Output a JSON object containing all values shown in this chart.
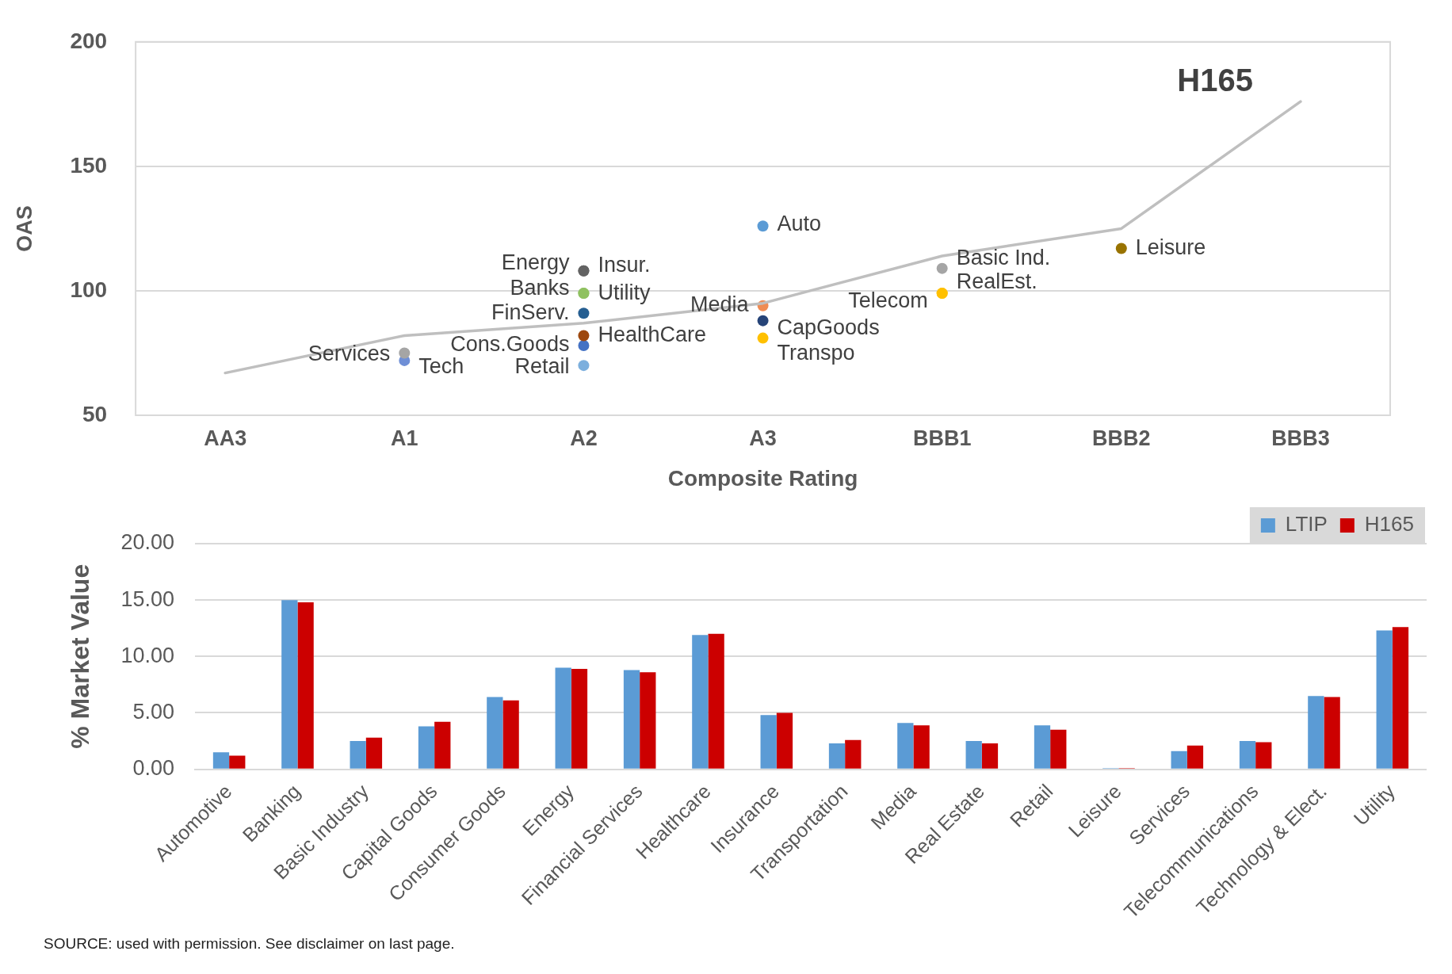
{
  "chart_data": [
    {
      "type": "line",
      "xlabel": "Composite Rating",
      "ylabel": "OAS",
      "categories": [
        "AA3",
        "A1",
        "A2",
        "A3",
        "BBB1",
        "BBB2",
        "BBB3"
      ],
      "ylim": [
        50,
        200
      ],
      "yticks": [
        50,
        100,
        150,
        200
      ],
      "grid": "y",
      "series": [
        {
          "name": "H165",
          "type": "line",
          "marker": "none",
          "color": "#bfbfbf",
          "values": [
            67,
            82,
            87,
            95,
            114,
            125,
            176
          ]
        },
        {
          "name": "Services",
          "type": "scatter",
          "color": "#a5a5a5",
          "x": [
            "A1"
          ],
          "values": [
            75
          ]
        },
        {
          "name": "Tech",
          "type": "scatter",
          "color": "#6f8fd6",
          "x": [
            "A1"
          ],
          "values": [
            72
          ]
        },
        {
          "name": "Energy",
          "type": "scatter",
          "color": "#636363",
          "x": [
            "A2"
          ],
          "values": [
            108
          ]
        },
        {
          "name": "Insur.",
          "type": "scatter",
          "color": "#636363",
          "x": [
            "A2"
          ],
          "values": [
            108
          ]
        },
        {
          "name": "Banks",
          "type": "scatter",
          "color": "#8fc160",
          "x": [
            "A2"
          ],
          "values": [
            99
          ]
        },
        {
          "name": "Utility",
          "type": "scatter",
          "color": "#8fc160",
          "x": [
            "A2"
          ],
          "values": [
            99
          ]
        },
        {
          "name": "FinServ.",
          "type": "scatter",
          "color": "#255e91",
          "x": [
            "A2"
          ],
          "values": [
            91
          ]
        },
        {
          "name": "HealthCare",
          "type": "scatter",
          "color": "#9e480e",
          "x": [
            "A2"
          ],
          "values": [
            82
          ]
        },
        {
          "name": "Cons.Goods",
          "type": "scatter",
          "color": "#4472c4",
          "x": [
            "A2"
          ],
          "values": [
            78
          ]
        },
        {
          "name": "Retail",
          "type": "scatter",
          "color": "#7cafdd",
          "x": [
            "A2"
          ],
          "values": [
            70
          ]
        },
        {
          "name": "Auto",
          "type": "scatter",
          "color": "#5b9bd5",
          "x": [
            "A3"
          ],
          "values": [
            126
          ]
        },
        {
          "name": "Media",
          "type": "scatter",
          "color": "#f08c53",
          "x": [
            "A3"
          ],
          "values": [
            94
          ]
        },
        {
          "name": "CapGoods",
          "type": "scatter",
          "color": "#264478",
          "x": [
            "A3"
          ],
          "values": [
            88
          ]
        },
        {
          "name": "Transpo",
          "type": "scatter",
          "color": "#ffc000",
          "x": [
            "A3"
          ],
          "values": [
            81
          ]
        },
        {
          "name": "Basic Ind.",
          "type": "scatter",
          "color": "#a5a5a5",
          "x": [
            "BBB1"
          ],
          "values": [
            109
          ]
        },
        {
          "name": "Telecom",
          "type": "scatter",
          "color": "#ffc000",
          "x": [
            "BBB1"
          ],
          "values": [
            99
          ]
        },
        {
          "name": "RealEst.",
          "type": "scatter",
          "color": "#ffc000",
          "x": [
            "BBB1"
          ],
          "values": [
            99
          ]
        },
        {
          "name": "Leisure",
          "type": "scatter",
          "color": "#997300",
          "x": [
            "BBB2"
          ],
          "values": [
            117
          ]
        }
      ]
    },
    {
      "type": "bar",
      "ylabel": "% Market Value",
      "categories": [
        "Automotive",
        "Banking",
        "Basic Industry",
        "Capital Goods",
        "Consumer Goods",
        "Energy",
        "Financial Services",
        "Healthcare",
        "Insurance",
        "Transportation",
        "Media",
        "Real Estate",
        "Retail",
        "Leisure",
        "Services",
        "Telecommunications",
        "Technology & Elect.",
        "Utility"
      ],
      "ylim": [
        0,
        20
      ],
      "yticks": [
        {
          "value": 0,
          "label": "0.00"
        },
        {
          "value": 5,
          "label": "5.00"
        },
        {
          "value": 10,
          "label": "10.00"
        },
        {
          "value": 15,
          "label": "15.00"
        },
        {
          "value": 20,
          "label": "20.00"
        }
      ],
      "grid": "y",
      "legend": "top right",
      "annotations": [
        "SOURCE: used with permission.  See disclaimer on last page."
      ],
      "series": [
        {
          "name": "LTIP",
          "color": "#5b9bd5",
          "values": [
            1.5,
            15.0,
            2.5,
            3.8,
            6.4,
            9.0,
            8.8,
            11.9,
            4.8,
            2.3,
            4.1,
            2.5,
            3.9,
            0.1,
            1.6,
            2.5,
            6.5,
            12.3
          ]
        },
        {
          "name": "H165",
          "color": "#cc0000",
          "values": [
            1.2,
            14.8,
            2.8,
            4.2,
            6.1,
            8.9,
            8.6,
            12.0,
            5.0,
            2.6,
            3.9,
            2.3,
            3.5,
            0.1,
            2.1,
            2.4,
            6.4,
            12.6
          ]
        }
      ]
    }
  ]
}
